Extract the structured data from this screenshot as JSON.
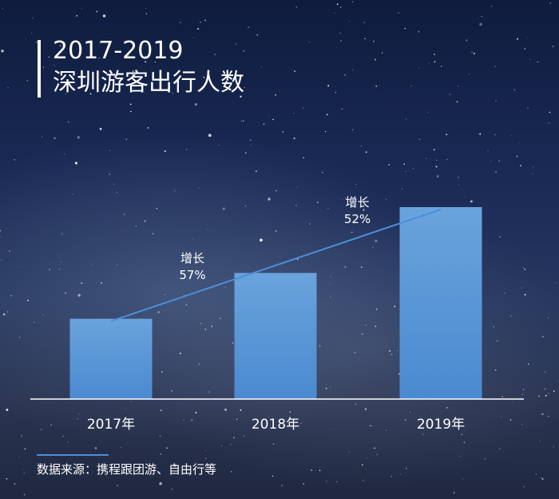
{
  "title": {
    "line1": "2017-2019",
    "line2": "深圳游客出行人数"
  },
  "chart_data": {
    "type": "bar",
    "categories": [
      "2017年",
      "2018年",
      "2019年"
    ],
    "values": [
      1,
      1.57,
      2.39
    ],
    "annotations": [
      {
        "text_line1": "增长",
        "text_line2": "57%",
        "between": [
          0,
          1
        ]
      },
      {
        "text_line1": "增长",
        "text_line2": "52%",
        "between": [
          1,
          2
        ]
      }
    ],
    "bar_color_top": "#6aa3dc",
    "bar_color_bottom": "#4a8ad0",
    "trend_color": "#4a90d9",
    "axis_color": "#ffffff"
  },
  "source": "数据来源：携程跟团游、自由行等",
  "colors": {
    "accent": "#4a90d9"
  }
}
